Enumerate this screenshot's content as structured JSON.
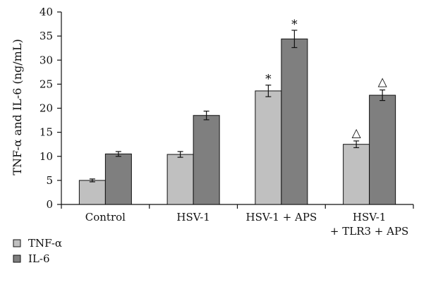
{
  "chart_data": {
    "type": "bar",
    "ylabel": "TNF-α and IL-6 (ng/mL)",
    "ylim": [
      0,
      40
    ],
    "yticks": [
      0,
      5,
      10,
      15,
      20,
      25,
      30,
      35,
      40
    ],
    "grid": false,
    "legend_position": "bottom-left",
    "categories": [
      [
        "Control"
      ],
      [
        "HSV-1"
      ],
      [
        "HSV-1 + APS"
      ],
      [
        "HSV-1",
        "+ TLR3 + APS"
      ]
    ],
    "series": [
      {
        "name": "TNF-α",
        "color": "#c0c0c0",
        "values": [
          5.0,
          10.4,
          23.6,
          12.5
        ],
        "errors": [
          0.3,
          0.6,
          1.2,
          0.7
        ],
        "markers": [
          "",
          "",
          "*",
          "△"
        ]
      },
      {
        "name": "IL-6",
        "color": "#7f7f7f",
        "values": [
          10.5,
          18.5,
          34.4,
          22.7
        ],
        "errors": [
          0.5,
          0.9,
          1.8,
          1.1
        ],
        "markers": [
          "",
          "",
          "*",
          "△"
        ]
      }
    ]
  }
}
